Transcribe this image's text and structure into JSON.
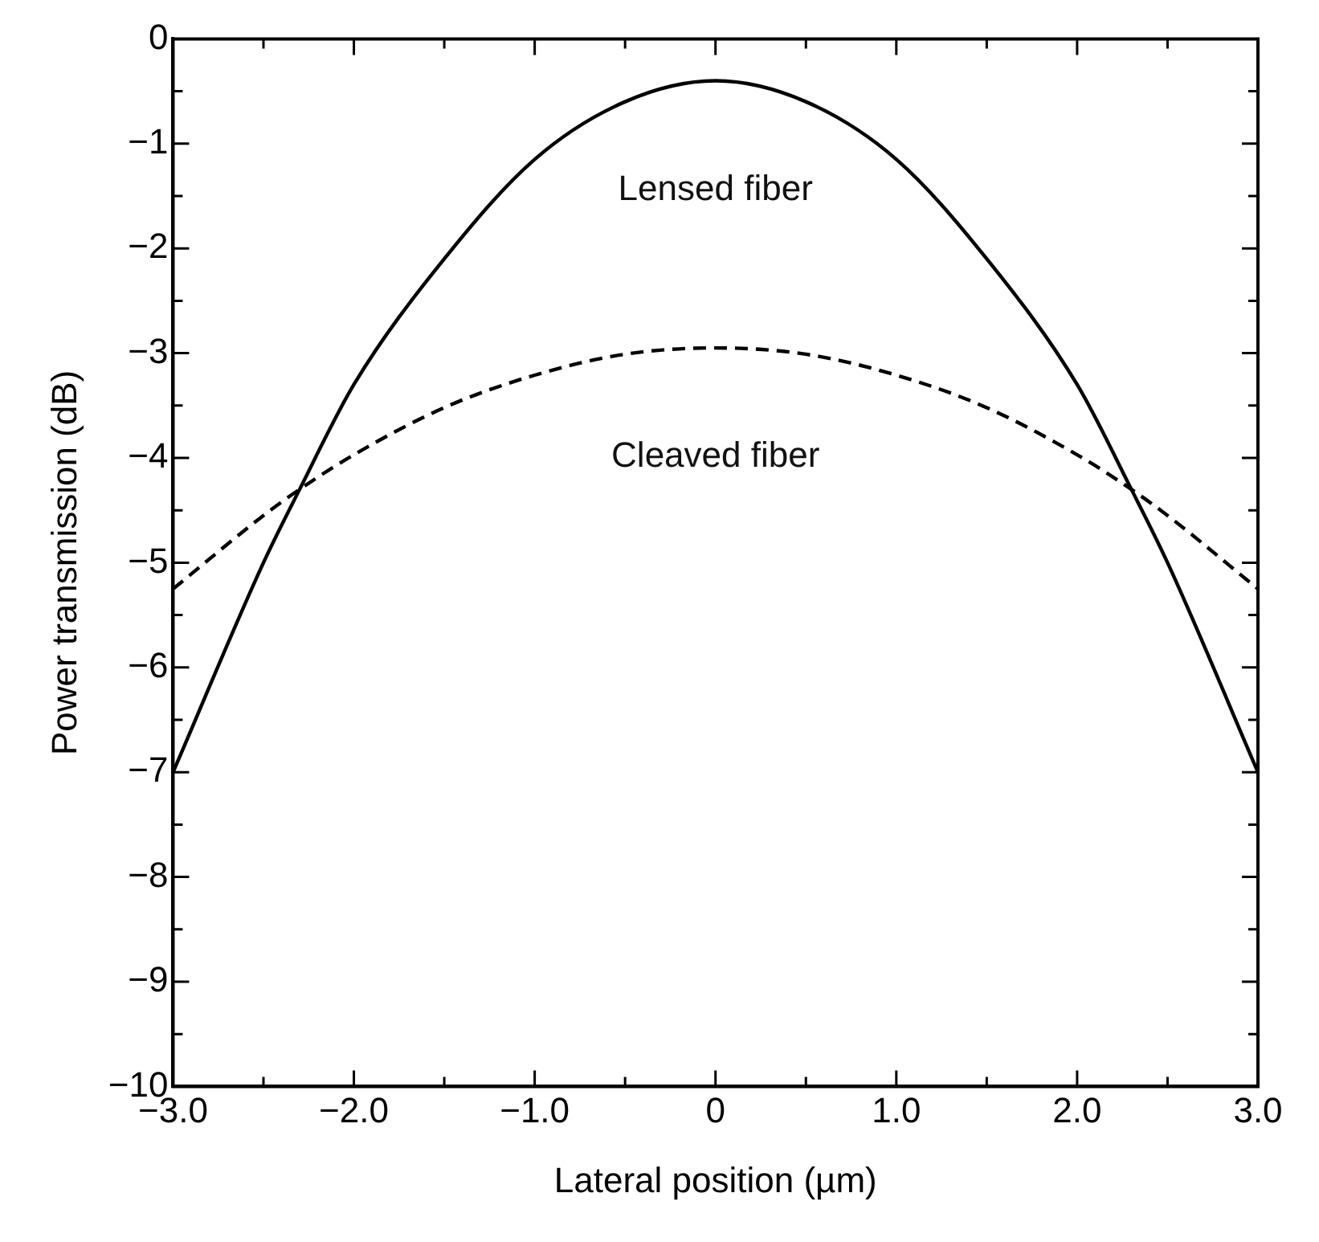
{
  "chart_data": {
    "type": "line",
    "xlabel": "Lateral position (µm)",
    "ylabel": "Power transmission (dB)",
    "xlim": [
      -3,
      3
    ],
    "ylim": [
      -10,
      0
    ],
    "xticks": [
      {
        "value": -3,
        "label": "−3.0"
      },
      {
        "value": -2,
        "label": "−2.0"
      },
      {
        "value": -1,
        "label": "−1.0"
      },
      0,
      {
        "value": 1,
        "label": "1.0"
      },
      {
        "value": 2,
        "label": "2.0"
      },
      {
        "value": 3,
        "label": "3.0"
      }
    ],
    "yticks": [
      {
        "value": -10,
        "label": "−10"
      },
      {
        "value": -9,
        "label": "−9"
      },
      {
        "value": -8,
        "label": "−8"
      },
      {
        "value": -7,
        "label": "−7"
      },
      {
        "value": -6,
        "label": "−6"
      },
      {
        "value": -5,
        "label": "−5"
      },
      {
        "value": -4,
        "label": "−4"
      },
      {
        "value": -3,
        "label": "−3"
      },
      {
        "value": -2,
        "label": "−2"
      },
      {
        "value": -1,
        "label": "−1"
      },
      0
    ],
    "grid": false,
    "legend": false,
    "marker": "none",
    "series": [
      {
        "name": "Lensed fiber",
        "color": "#000000",
        "line_style": "solid",
        "x": [
          -3,
          -2.5,
          -2.3,
          -2,
          -1.5,
          -1,
          -0.5,
          0,
          0.5,
          1,
          1.5,
          2,
          2.3,
          2.5,
          3
        ],
        "values": [
          -7.0,
          -5.0,
          -4.3,
          -3.3,
          -2.1,
          -1.15,
          -0.6,
          -0.4,
          -0.6,
          -1.15,
          -2.1,
          -3.3,
          -4.3,
          -5.0,
          -7.0
        ]
      },
      {
        "name": "Cleaved fiber",
        "color": "#000000",
        "line_style": "dashed",
        "x": [
          -3,
          -2.5,
          -2.3,
          -2,
          -1.5,
          -1,
          -0.5,
          0,
          0.5,
          1,
          1.5,
          2,
          2.3,
          2.5,
          3
        ],
        "values": [
          -5.25,
          -4.55,
          -4.3,
          -3.97,
          -3.52,
          -3.21,
          -3.01,
          -2.95,
          -3.01,
          -3.21,
          -3.52,
          -3.97,
          -4.3,
          -4.55,
          -5.25
        ]
      }
    ]
  }
}
